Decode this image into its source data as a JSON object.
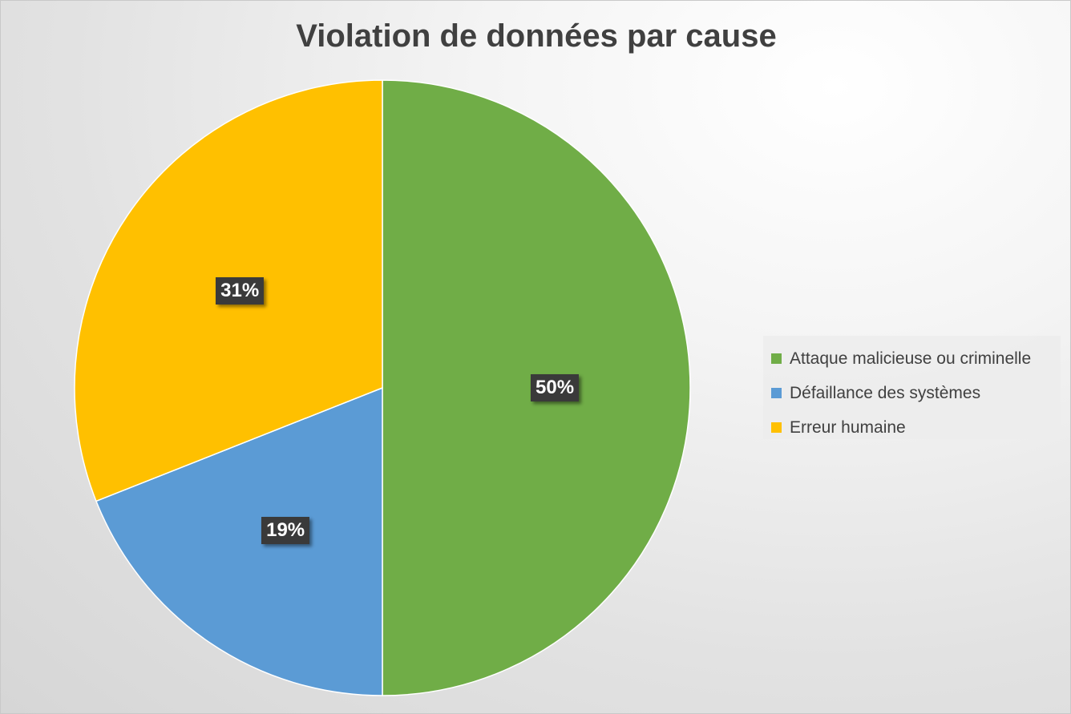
{
  "chart_data": {
    "type": "pie",
    "title": "Violation de données par cause",
    "slices": [
      {
        "name": "Attaque malicieuse ou criminelle",
        "value": 50,
        "label": "50%",
        "color": "#70ad47"
      },
      {
        "name": "Défaillance des systèmes",
        "value": 19,
        "label": "19%",
        "color": "#5b9bd5"
      },
      {
        "name": "Erreur humaine",
        "value": 31,
        "label": "31%",
        "color": "#ffc000"
      }
    ],
    "start_angle_deg": 0,
    "direction": "clockwise",
    "legend_position": "right",
    "data_label_format": "percent"
  }
}
